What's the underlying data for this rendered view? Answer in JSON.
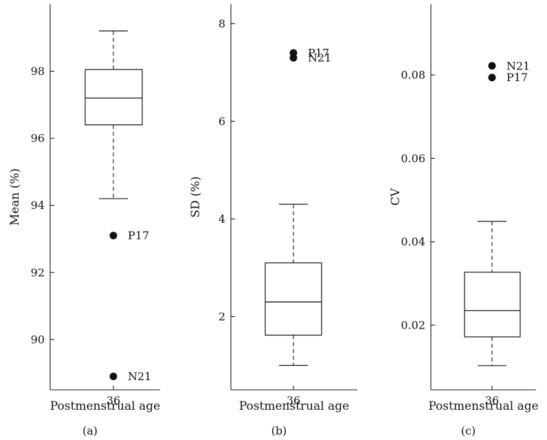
{
  "chart_data": [
    {
      "type": "box",
      "panel_label": "(a)",
      "xlabel": "Postmenstrual age",
      "ylabel": "Mean (%)",
      "categories": [
        "36"
      ],
      "ylim": [
        88.5,
        100.0
      ],
      "yticks": [
        90,
        92,
        94,
        96,
        98
      ],
      "ytick_labels": [
        "90",
        "92",
        "94",
        "96",
        "98"
      ],
      "box": {
        "whisker_low": 94.2,
        "q1": 96.4,
        "median": 97.2,
        "q3": 98.05,
        "whisker_high": 99.2
      },
      "outliers": [
        {
          "label": "P17",
          "value": 93.1
        },
        {
          "label": "N21",
          "value": 88.9
        }
      ]
    },
    {
      "type": "box",
      "panel_label": "(b)",
      "xlabel": "Postmenstrual age",
      "ylabel": "SD (%)",
      "categories": [
        "36"
      ],
      "ylim": [
        0.5,
        8.4
      ],
      "yticks": [
        2,
        4,
        6,
        8
      ],
      "ytick_labels": [
        "2",
        "4",
        "6",
        "8"
      ],
      "box": {
        "whisker_low": 1.0,
        "q1": 1.62,
        "median": 2.3,
        "q3": 3.1,
        "whisker_high": 4.3
      },
      "outliers": [
        {
          "label": "P17",
          "value": 7.4
        },
        {
          "label": "N21",
          "value": 7.3
        }
      ]
    },
    {
      "type": "box",
      "panel_label": "(c)",
      "xlabel": "Postmenstrual age",
      "ylabel": "CV",
      "categories": [
        "36"
      ],
      "ylim": [
        0.0045,
        0.097
      ],
      "yticks": [
        0.02,
        0.04,
        0.06,
        0.08
      ],
      "ytick_labels": [
        "0.02",
        "0.04",
        "0.06",
        "0.08"
      ],
      "box": {
        "whisker_low": 0.0103,
        "q1": 0.0172,
        "median": 0.0235,
        "q3": 0.0327,
        "whisker_high": 0.0449
      },
      "outliers": [
        {
          "label": "N21",
          "value": 0.0822
        },
        {
          "label": "P17",
          "value": 0.0794
        }
      ]
    }
  ]
}
